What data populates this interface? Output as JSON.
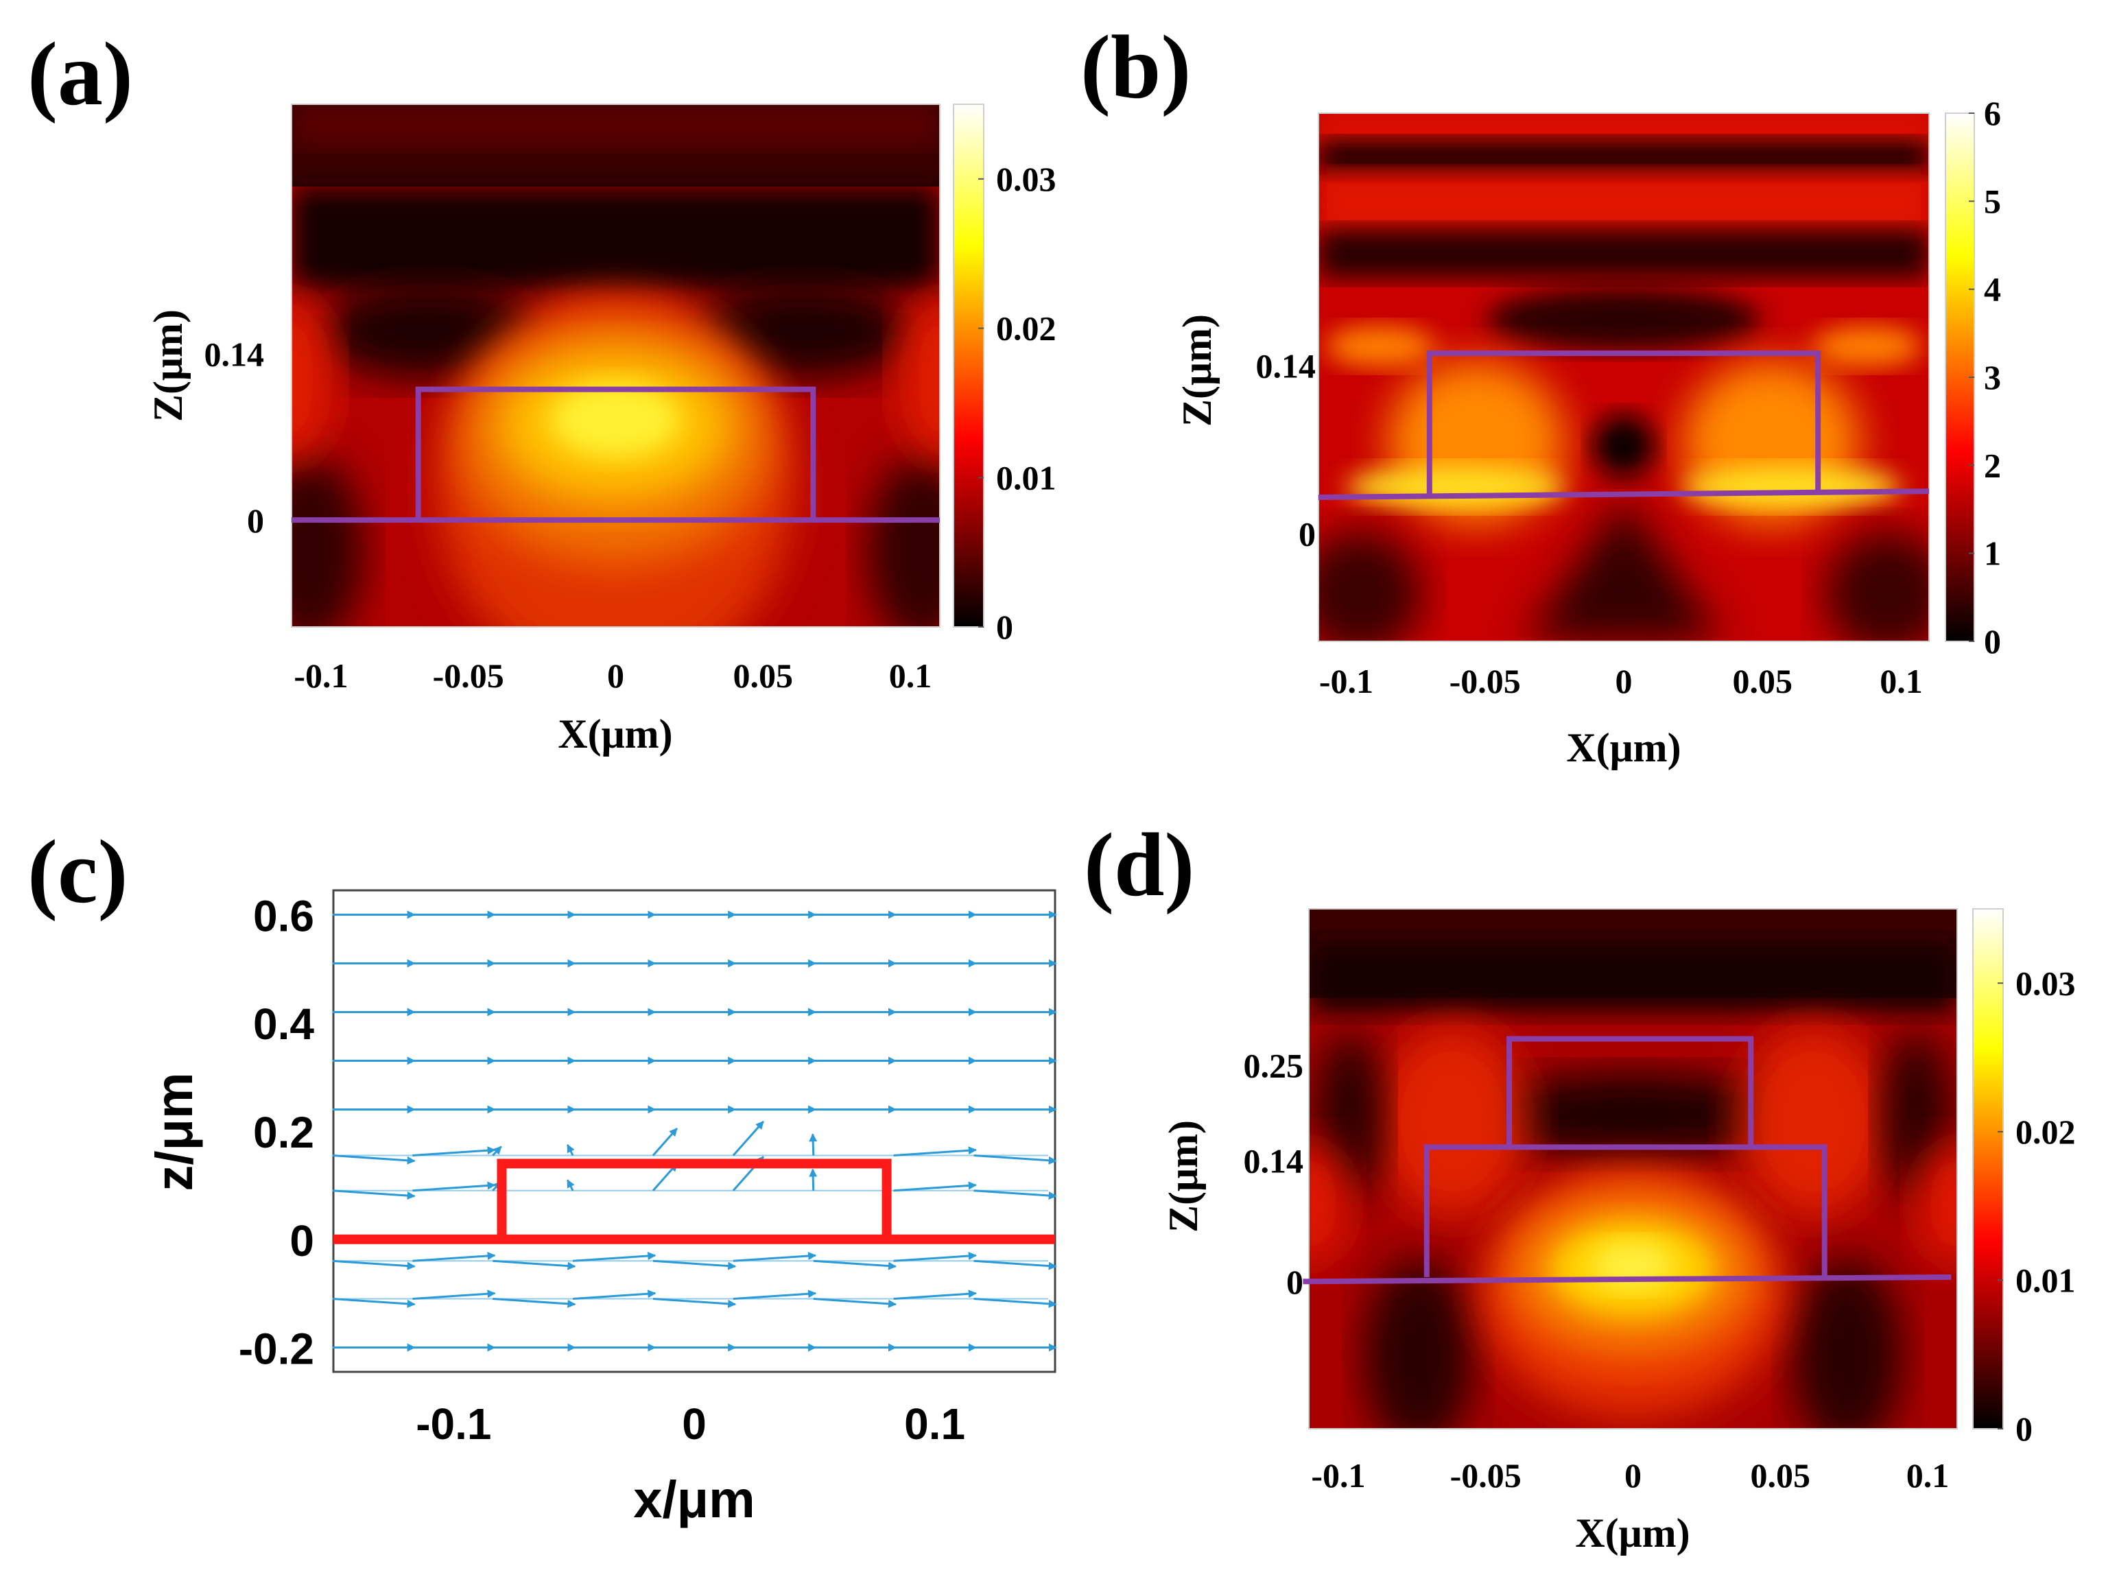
{
  "chart_data": [
    {
      "id": "a",
      "type": "heatmap",
      "panel_label": "(a)",
      "xlabel": "X(μm)",
      "ylabel": "Z(μm)",
      "xlim": [
        -0.11,
        0.11
      ],
      "ylim": [
        -0.09,
        0.35
      ],
      "xticks": [
        {
          "value": -0.1,
          "label": "-0.1"
        },
        {
          "value": -0.05,
          "label": "-0.05"
        },
        {
          "value": 0,
          "label": "0"
        },
        {
          "value": 0.05,
          "label": "0.05"
        },
        {
          "value": 0.1,
          "label": "0.1"
        }
      ],
      "yticks": [
        {
          "value": 0,
          "label": "0"
        },
        {
          "value": 0.14,
          "label": "0.14"
        }
      ],
      "colorbar": {
        "min": 0,
        "max": 0.035,
        "ticks": [
          {
            "value": 0,
            "label": "0"
          },
          {
            "value": 0.01,
            "label": "0.01"
          },
          {
            "value": 0.02,
            "label": "0.02"
          },
          {
            "value": 0.03,
            "label": "0.03"
          }
        ]
      },
      "outlines": [
        {
          "name": "substrate-line",
          "points": [
            [
              -0.11,
              0
            ],
            [
              0.11,
              0
            ]
          ]
        },
        {
          "name": "waveguide-outline",
          "points": [
            [
              -0.067,
              0
            ],
            [
              -0.067,
              0.11
            ],
            [
              0.067,
              0.11
            ],
            [
              0.067,
              0
            ]
          ]
        }
      ],
      "outline_color": "#8a3fa8",
      "colormap": "hot"
    },
    {
      "id": "b",
      "type": "heatmap",
      "panel_label": "(b)",
      "xlabel": "X(μm)",
      "ylabel": "Z(μm)",
      "xlim": [
        -0.11,
        0.11
      ],
      "ylim": [
        -0.09,
        0.35
      ],
      "xticks": [
        {
          "value": -0.1,
          "label": "-0.1"
        },
        {
          "value": -0.05,
          "label": "-0.05"
        },
        {
          "value": 0,
          "label": "0"
        },
        {
          "value": 0.05,
          "label": "0.05"
        },
        {
          "value": 0.1,
          "label": "0.1"
        }
      ],
      "yticks": [
        {
          "value": 0,
          "label": "0"
        },
        {
          "value": 0.14,
          "label": "0.14"
        }
      ],
      "colorbar": {
        "min": 0,
        "max": 6,
        "ticks": [
          {
            "value": 0,
            "label": "0"
          },
          {
            "value": 1,
            "label": "1"
          },
          {
            "value": 2,
            "label": "2"
          },
          {
            "value": 3,
            "label": "3"
          },
          {
            "value": 4,
            "label": "4"
          },
          {
            "value": 5,
            "label": "5"
          },
          {
            "value": 6,
            "label": "6"
          }
        ]
      },
      "outlines": [
        {
          "name": "substrate-line",
          "points": [
            [
              -0.11,
              0.03
            ],
            [
              0.11,
              0.035
            ]
          ]
        },
        {
          "name": "waveguide-outline",
          "points": [
            [
              -0.07,
              0.03
            ],
            [
              -0.07,
              0.15
            ],
            [
              0.07,
              0.15
            ],
            [
              0.07,
              0.035
            ]
          ]
        }
      ],
      "outline_color": "#8a3fa8",
      "colormap": "hot"
    },
    {
      "id": "c",
      "type": "quiver",
      "panel_label": "(c)",
      "xlabel": "x/μm",
      "ylabel": "z/μm",
      "xlim": [
        -0.15,
        0.15
      ],
      "ylim": [
        -0.245,
        0.645
      ],
      "xticks": [
        {
          "value": -0.1,
          "label": "-0.1"
        },
        {
          "value": 0,
          "label": "0"
        },
        {
          "value": 0.1,
          "label": "0.1"
        }
      ],
      "yticks": [
        {
          "value": -0.2,
          "label": "-0.2"
        },
        {
          "value": 0,
          "label": "0"
        },
        {
          "value": 0.2,
          "label": "0.2"
        },
        {
          "value": 0.4,
          "label": "0.4"
        },
        {
          "value": 0.6,
          "label": "0.6"
        }
      ],
      "outlines": [
        {
          "name": "substrate-line",
          "points": [
            [
              -0.15,
              0
            ],
            [
              0.15,
              0
            ]
          ]
        },
        {
          "name": "waveguide-outline",
          "points": [
            [
              -0.08,
              0
            ],
            [
              -0.08,
              0.14
            ],
            [
              0.08,
              0.14
            ],
            [
              0.08,
              0
            ]
          ]
        }
      ],
      "outline_color": "#ff1a1a",
      "arrow_color": "#2a9ad8",
      "arrow_rows_z": [
        0.6,
        0.51,
        0.42,
        0.33,
        0.24,
        0.155,
        0.09,
        -0.04,
        -0.11,
        -0.2
      ]
    },
    {
      "id": "d",
      "type": "heatmap",
      "panel_label": "(d)",
      "xlabel": "X(μm)",
      "ylabel": "Z(μm)",
      "xlim": [
        -0.11,
        0.11
      ],
      "ylim": [
        -0.17,
        0.43
      ],
      "xticks": [
        {
          "value": -0.1,
          "label": "-0.1"
        },
        {
          "value": -0.05,
          "label": "-0.05"
        },
        {
          "value": 0,
          "label": "0"
        },
        {
          "value": 0.05,
          "label": "0.05"
        },
        {
          "value": 0.1,
          "label": "0.1"
        }
      ],
      "yticks": [
        {
          "value": 0,
          "label": "0"
        },
        {
          "value": 0.14,
          "label": "0.14"
        },
        {
          "value": 0.25,
          "label": "0.25"
        }
      ],
      "colorbar": {
        "min": 0,
        "max": 0.035,
        "ticks": [
          {
            "value": 0,
            "label": "0"
          },
          {
            "value": 0.01,
            "label": "0.01"
          },
          {
            "value": 0.02,
            "label": "0.02"
          },
          {
            "value": 0.03,
            "label": "0.03"
          }
        ]
      },
      "outlines": [
        {
          "name": "substrate-line",
          "points": [
            [
              -0.112,
              0
            ],
            [
              0.108,
              0.005
            ]
          ]
        },
        {
          "name": "lower-waveguide-outline",
          "points": [
            [
              -0.07,
              0.005
            ],
            [
              -0.07,
              0.155
            ],
            [
              0.065,
              0.155
            ],
            [
              0.065,
              0.005
            ]
          ]
        },
        {
          "name": "upper-waveguide-outline",
          "points": [
            [
              -0.042,
              0.155
            ],
            [
              -0.042,
              0.28
            ],
            [
              0.04,
              0.28
            ],
            [
              0.04,
              0.155
            ]
          ]
        }
      ],
      "outline_color": "#8a3fa8",
      "colormap": "hot"
    }
  ]
}
